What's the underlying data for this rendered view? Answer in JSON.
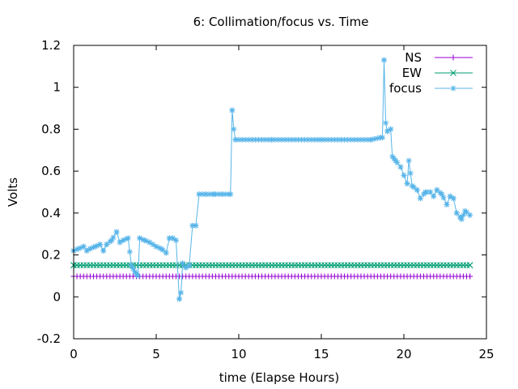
{
  "chart_data": {
    "type": "line",
    "title": "6: Collimation/focus vs. Time",
    "xlabel": "time (Elapse Hours)",
    "ylabel": "Volts",
    "xlim": [
      0,
      25
    ],
    "ylim": [
      -0.2,
      1.2
    ],
    "xticks": [
      0,
      5,
      10,
      15,
      20,
      25
    ],
    "yticks": [
      -0.2,
      0,
      0.2,
      0.4,
      0.6,
      0.8,
      1,
      1.2
    ],
    "xtick_labels": [
      "0",
      "5",
      "10",
      "15",
      "20",
      "25"
    ],
    "ytick_labels": [
      "-0.2",
      "0",
      "0.2",
      "0.4",
      "0.6",
      "0.8",
      "1",
      "1.2"
    ],
    "grid": false,
    "legend_position": "top-right",
    "series": [
      {
        "name": "NS",
        "color": "#9400d3",
        "marker": "plus",
        "x": [
          0,
          24
        ],
        "y": [
          0.098,
          0.098
        ]
      },
      {
        "name": "EW",
        "color": "#009e73",
        "marker": "cross",
        "x": [
          0,
          24
        ],
        "y": [
          0.151,
          0.151
        ]
      },
      {
        "name": "focus",
        "color": "#56b4e9",
        "marker": "star",
        "x": [
          0,
          0.3,
          0.6,
          0.8,
          1.0,
          1.3,
          1.6,
          1.8,
          2.0,
          2.3,
          2.6,
          2.8,
          3.0,
          3.3,
          3.5,
          3.7,
          3.8,
          3.9,
          4.0,
          4.3,
          4.6,
          5.0,
          5.3,
          5.6,
          5.8,
          6.0,
          6.2,
          6.4,
          6.5,
          6.6,
          6.8,
          7.0,
          7.2,
          7.4,
          7.6,
          8.0,
          8.5,
          9.0,
          9.5,
          9.6,
          9.7,
          9.8,
          12.0,
          15.0,
          18.0,
          18.6,
          18.7,
          18.8,
          18.9,
          19.0,
          19.2,
          19.3,
          19.5,
          19.8,
          20.0,
          20.2,
          20.3,
          20.5,
          20.8,
          21.0,
          21.3,
          21.6,
          21.8,
          22.0,
          22.3,
          22.6,
          22.8,
          23.0,
          23.2,
          23.4,
          23.5,
          23.7,
          24.0
        ],
        "y": [
          0.22,
          0.23,
          0.24,
          0.22,
          0.23,
          0.24,
          0.25,
          0.22,
          0.25,
          0.27,
          0.31,
          0.26,
          0.27,
          0.28,
          0.15,
          0.12,
          0.11,
          0.1,
          0.28,
          0.27,
          0.26,
          0.24,
          0.23,
          0.21,
          0.28,
          0.28,
          0.27,
          -0.01,
          0.02,
          0.16,
          0.14,
          0.15,
          0.34,
          0.34,
          0.49,
          0.49,
          0.49,
          0.49,
          0.49,
          0.89,
          0.8,
          0.75,
          0.75,
          0.75,
          0.75,
          0.76,
          0.76,
          1.13,
          0.83,
          0.79,
          0.8,
          0.67,
          0.65,
          0.62,
          0.58,
          0.54,
          0.65,
          0.53,
          0.51,
          0.47,
          0.5,
          0.5,
          0.48,
          0.51,
          0.49,
          0.44,
          0.48,
          0.47,
          0.4,
          0.38,
          0.37,
          0.41,
          0.39
        ]
      }
    ]
  }
}
